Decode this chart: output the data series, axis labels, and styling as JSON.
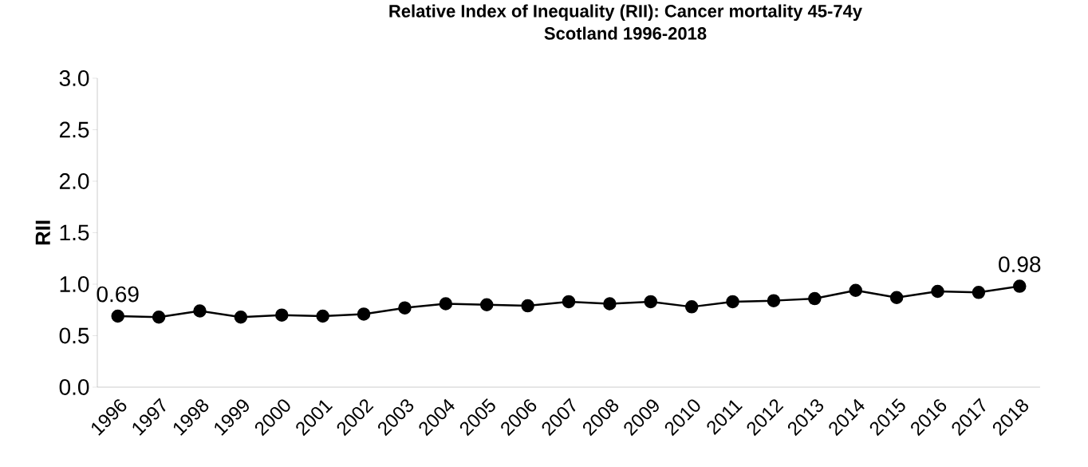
{
  "chart_data": {
    "type": "line",
    "title": "Relative Index of Inequality (RII): Cancer mortality 45-74y",
    "subtitle": "Scotland 1996-2018",
    "ylabel": "RII",
    "categories": [
      "1996",
      "1997",
      "1998",
      "1999",
      "2000",
      "2001",
      "2002",
      "2003",
      "2004",
      "2005",
      "2006",
      "2007",
      "2008",
      "2009",
      "2010",
      "2011",
      "2012",
      "2013",
      "2014",
      "2015",
      "2016",
      "2017",
      "2018"
    ],
    "values": [
      0.69,
      0.68,
      0.74,
      0.68,
      0.7,
      0.69,
      0.71,
      0.77,
      0.81,
      0.8,
      0.79,
      0.83,
      0.81,
      0.83,
      0.78,
      0.83,
      0.84,
      0.86,
      0.94,
      0.87,
      0.93,
      0.92,
      0.98
    ],
    "value_labels": [
      "0.69",
      null,
      null,
      null,
      null,
      null,
      null,
      null,
      null,
      null,
      null,
      null,
      null,
      null,
      null,
      null,
      null,
      null,
      null,
      null,
      null,
      null,
      "0.98"
    ],
    "color": "#000000",
    "marker": "circle",
    "line_style": "solid",
    "ylim": [
      0,
      3
    ],
    "yticks": [
      "0.0",
      "0.5",
      "1.0",
      "1.5",
      "2.0",
      "2.5",
      "3.0"
    ]
  }
}
